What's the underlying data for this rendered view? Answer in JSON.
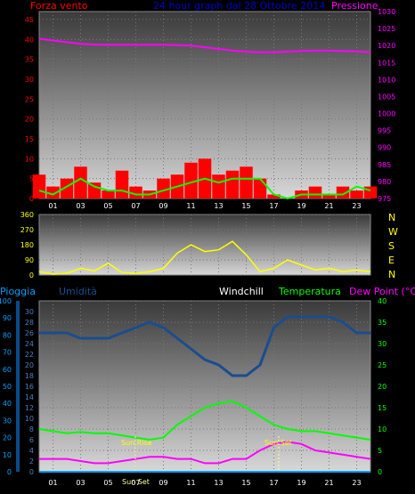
{
  "header": {
    "left_label": "Forza vento",
    "center_label": "24 hour graph dal 28 Ottobre 2014",
    "right_label": "Pressione"
  },
  "direction_labels": [
    "N",
    "W",
    "S",
    "E",
    "N"
  ],
  "bottom_header": {
    "rain": "Pioggia",
    "humidity": "Umidità",
    "windchill": "Windchill",
    "temperature": "Temperatura",
    "dewpoint": "Dew Point (°C)"
  },
  "annotations": {
    "sunrise": "Sun Rise",
    "sunset": "Sun Set",
    "sun_hidden": "Sun Set"
  },
  "colors": {
    "wind": "#ff0000",
    "wind_avg": "#00ff00",
    "pressure": "#ff00ff",
    "direction": "#ffff00",
    "humidity": "#1a4d8f",
    "temperature": "#00ff00",
    "dewpoint": "#ff00ff",
    "rain": "#00a0ff",
    "windchill": "#ffffff"
  },
  "chart_data": [
    {
      "type": "line",
      "title": "24 hour graph dal 28 Ottobre 2014",
      "x_ticks": [
        "01",
        "03",
        "05",
        "07",
        "09",
        "11",
        "13",
        "15",
        "17",
        "19",
        "21",
        "23"
      ],
      "y_left_ticks": [
        0,
        5,
        10,
        15,
        20,
        25,
        30,
        35,
        40,
        45
      ],
      "y_left_range": [
        0,
        47
      ],
      "y_right_ticks": [
        975,
        980,
        985,
        990,
        995,
        1000,
        1005,
        1010,
        1015,
        1020,
        1025,
        1030
      ],
      "y_right_range": [
        975,
        1030
      ],
      "series": [
        {
          "name": "Forza vento",
          "axis": "left",
          "x": [
            0,
            1,
            2,
            3,
            4,
            5,
            6,
            7,
            8,
            9,
            10,
            11,
            12,
            13,
            14,
            15,
            16,
            17,
            18,
            19,
            20,
            21,
            22,
            23,
            24
          ],
          "values": [
            6,
            3,
            5,
            8,
            4,
            2,
            7,
            3,
            2,
            5,
            6,
            9,
            10,
            6,
            7,
            8,
            5,
            1,
            0,
            2,
            3,
            1,
            3,
            2,
            3
          ]
        },
        {
          "name": "Forza vento (media)",
          "axis": "left",
          "x": [
            0,
            1,
            2,
            3,
            4,
            5,
            6,
            7,
            8,
            9,
            10,
            11,
            12,
            13,
            14,
            15,
            16,
            17,
            18,
            19,
            20,
            21,
            22,
            23,
            24
          ],
          "values": [
            2,
            1,
            3,
            5,
            3,
            2,
            2,
            1,
            1,
            2,
            3,
            4,
            5,
            4,
            5,
            5,
            5,
            1,
            0,
            1,
            1,
            1,
            1,
            3,
            2
          ]
        },
        {
          "name": "Pressione",
          "axis": "right",
          "x": [
            0,
            1,
            2,
            3,
            4,
            5,
            6,
            7,
            8,
            9,
            10,
            11,
            12,
            13,
            14,
            15,
            16,
            17,
            18,
            19,
            20,
            21,
            22,
            23,
            24
          ],
          "values": [
            1022,
            1021.5,
            1021,
            1020.5,
            1020.3,
            1020.2,
            1020.2,
            1020.2,
            1020.2,
            1020.2,
            1020.1,
            1020,
            1019.5,
            1019,
            1018.5,
            1018.2,
            1018,
            1018,
            1018.2,
            1018.4,
            1018.5,
            1018.5,
            1018.4,
            1018.3,
            1018
          ]
        }
      ]
    },
    {
      "type": "line",
      "x_ticks": [
        "01",
        "03",
        "05",
        "07",
        "09",
        "11",
        "13",
        "15",
        "17",
        "19",
        "21",
        "23"
      ],
      "y_ticks": [
        0,
        90,
        180,
        270,
        360
      ],
      "y_range": [
        0,
        360
      ],
      "right_labels": [
        "N",
        "W",
        "S",
        "E",
        "N"
      ],
      "series": [
        {
          "name": "Direzione vento",
          "x": [
            0,
            1,
            2,
            3,
            4,
            5,
            6,
            7,
            8,
            9,
            10,
            11,
            12,
            13,
            14,
            15,
            16,
            17,
            18,
            19,
            20,
            21,
            22,
            23,
            24
          ],
          "values": [
            20,
            5,
            10,
            40,
            25,
            70,
            15,
            10,
            20,
            40,
            130,
            180,
            140,
            150,
            200,
            120,
            20,
            40,
            90,
            60,
            30,
            40,
            20,
            30,
            20
          ]
        }
      ]
    },
    {
      "type": "line",
      "x_ticks": [
        "01",
        "03",
        "05",
        "07",
        "09",
        "11",
        "13",
        "15",
        "17",
        "19",
        "21",
        "23"
      ],
      "y_rain_ticks": [
        0,
        10,
        20,
        30,
        40,
        50,
        60,
        70,
        80,
        90,
        100
      ],
      "y_humidity_ticks": [
        0,
        2,
        4,
        6,
        8,
        10,
        12,
        14,
        16,
        18,
        20,
        22,
        24,
        26,
        28,
        30
      ],
      "y_temperature_ticks": [
        0,
        5,
        10,
        15,
        20,
        25,
        30,
        35,
        40
      ],
      "y_temperature_range": [
        0,
        40
      ],
      "series": [
        {
          "name": "Umidità",
          "axis": "humidity",
          "x": [
            0,
            1,
            2,
            3,
            4,
            5,
            6,
            7,
            8,
            9,
            10,
            11,
            12,
            13,
            14,
            15,
            16,
            17,
            18,
            19,
            20,
            21,
            22,
            23,
            24
          ],
          "values": [
            26,
            26,
            26,
            25,
            25,
            25,
            26,
            27,
            28,
            27,
            25,
            23,
            21,
            20,
            18,
            18,
            20,
            27,
            29,
            29,
            29,
            29,
            28,
            26,
            26
          ]
        },
        {
          "name": "Temperatura",
          "axis": "temperature",
          "x": [
            0,
            1,
            2,
            3,
            4,
            5,
            6,
            7,
            8,
            9,
            10,
            11,
            12,
            13,
            14,
            15,
            16,
            17,
            18,
            19,
            20,
            21,
            22,
            23,
            24
          ],
          "values": [
            10,
            9.5,
            9,
            9.3,
            9,
            9,
            8.5,
            8,
            7.5,
            8,
            11,
            13,
            15,
            16,
            16.5,
            15,
            13,
            11,
            10,
            9.5,
            9.5,
            9,
            8.5,
            8,
            7.5
          ]
        },
        {
          "name": "Dew Point",
          "axis": "temperature",
          "x": [
            0,
            1,
            2,
            3,
            4,
            5,
            6,
            7,
            8,
            9,
            10,
            11,
            12,
            13,
            14,
            15,
            16,
            17,
            18,
            19,
            20,
            21,
            22,
            23,
            24
          ],
          "values": [
            3,
            3,
            3,
            2.5,
            2,
            2,
            2.5,
            3,
            3.5,
            3.5,
            3,
            3,
            2,
            2,
            3,
            3,
            5,
            6.5,
            7,
            6.5,
            5,
            4.5,
            4,
            3.5,
            3
          ]
        },
        {
          "name": "Pioggia",
          "axis": "temperature",
          "x": [
            0,
            24
          ],
          "values": [
            0,
            0
          ]
        }
      ]
    }
  ]
}
